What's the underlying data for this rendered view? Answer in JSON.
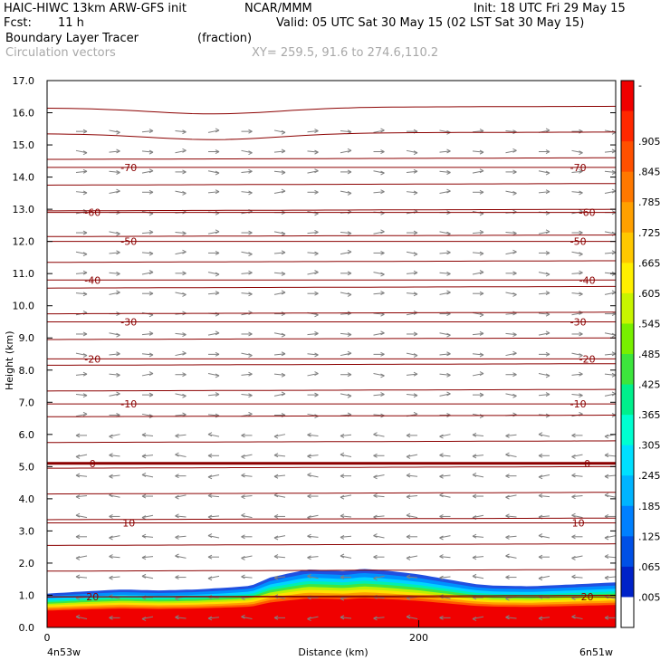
{
  "header": {
    "model": "HAIC-HIWC 13km ARW-GFS init",
    "org": "NCAR/MMM",
    "init": "Init: 18 UTC Fri 29 May 15",
    "fcst_label": "Fcst:",
    "fcst_value": "11 h",
    "valid": "Valid: 05 UTC Sat 30 May 15 (02 LST Sat 30 May 15)",
    "field": "Boundary Layer Tracer",
    "field_units": "(fraction)",
    "overlay": "Circulation vectors",
    "xy": "XY= 259.5, 91.6 to 274.6,110.2"
  },
  "colors": {
    "contour": "#8b0000",
    "vector": "#808080",
    "colorbar": [
      "#ffffff",
      "#0022c8",
      "#0050e6",
      "#0080ff",
      "#00b4ff",
      "#00e0ff",
      "#00ffd0",
      "#00f08c",
      "#3ce63c",
      "#78f000",
      "#c8f500",
      "#fff000",
      "#ffc800",
      "#ffa000",
      "#ff7800",
      "#ff5000",
      "#ff2800",
      "#f00000"
    ]
  },
  "chart_data": {
    "type": "heatmap",
    "ylabel": "Height (km)",
    "xlabel": "Distance (km)",
    "ylim": [
      0,
      17
    ],
    "xlim": [
      0,
      306
    ],
    "y_ticks": [
      "0.0",
      "1.0",
      "2.0",
      "3.0",
      "4.0",
      "5.0",
      "6.0",
      "7.0",
      "8.0",
      "9.0",
      "10.0",
      "11.0",
      "12.0",
      "13.0",
      "14.0",
      "15.0",
      "16.0",
      "17.0"
    ],
    "x_ticks": [
      {
        "x": 0,
        "label": "0"
      },
      {
        "x": 200,
        "label": "200"
      }
    ],
    "x_endpoints": {
      "left": "4n53w",
      "right": "6n51w"
    },
    "colorbar_labels": [
      "-",
      ".905",
      ".845",
      ".785",
      ".725",
      ".665",
      ".605",
      ".545",
      ".485",
      ".425",
      ".365",
      ".305",
      ".245",
      ".185",
      ".125",
      ".065",
      ".005"
    ],
    "tracer_top_km": [
      [
        0,
        1.05
      ],
      [
        20,
        1.12
      ],
      [
        40,
        1.18
      ],
      [
        60,
        1.15
      ],
      [
        80,
        1.18
      ],
      [
        100,
        1.25
      ],
      [
        110,
        1.3
      ],
      [
        120,
        1.55
      ],
      [
        130,
        1.68
      ],
      [
        140,
        1.8
      ],
      [
        150,
        1.78
      ],
      [
        160,
        1.75
      ],
      [
        170,
        1.82
      ],
      [
        180,
        1.78
      ],
      [
        190,
        1.72
      ],
      [
        200,
        1.65
      ],
      [
        210,
        1.55
      ],
      [
        220,
        1.45
      ],
      [
        230,
        1.35
      ],
      [
        240,
        1.3
      ],
      [
        260,
        1.28
      ],
      [
        280,
        1.33
      ],
      [
        306,
        1.4
      ]
    ],
    "temperature_contours": [
      {
        "value": 20,
        "label": "20",
        "height_km": 0.95
      },
      {
        "value": 10,
        "label": "10",
        "height_km": 3.25
      },
      {
        "value": 0,
        "label": "0",
        "height_km": 5.1
      },
      {
        "value": -10,
        "label": "-10",
        "height_km": 6.95
      },
      {
        "value": -20,
        "label": "-20",
        "height_km": 8.35
      },
      {
        "value": -30,
        "label": "-30",
        "height_km": 9.5
      },
      {
        "value": -40,
        "label": "-40",
        "height_km": 10.8
      },
      {
        "value": -50,
        "label": "-50",
        "height_km": 12.0
      },
      {
        "value": -60,
        "label": "-60",
        "height_km": 12.9
      },
      {
        "value": -70,
        "label": "-70",
        "height_km": 14.3
      }
    ]
  }
}
